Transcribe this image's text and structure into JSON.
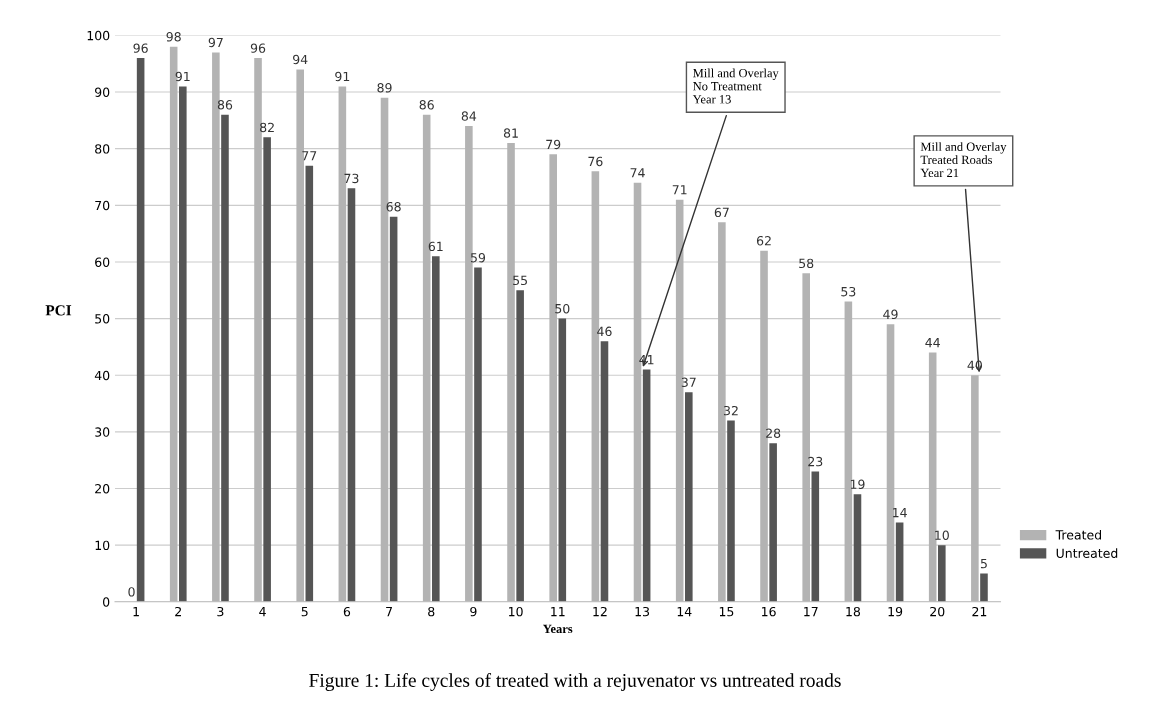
{
  "chart_data": {
    "type": "bar",
    "xlabel": "Years",
    "ylabel": "PCI",
    "categories": [
      "1",
      "2",
      "3",
      "4",
      "5",
      "6",
      "7",
      "8",
      "9",
      "10",
      "11",
      "12",
      "13",
      "14",
      "15",
      "16",
      "17",
      "18",
      "19",
      "20",
      "21"
    ],
    "series": [
      {
        "name": "Treated",
        "color": "#b3b3b3",
        "values": [
          0,
          98,
          97,
          96,
          94,
          91,
          89,
          86,
          84,
          81,
          79,
          76,
          74,
          71,
          67,
          62,
          58,
          53,
          49,
          44,
          40
        ]
      },
      {
        "name": "Untreated",
        "color": "#555555",
        "values": [
          96,
          91,
          86,
          82,
          77,
          73,
          68,
          61,
          59,
          55,
          50,
          46,
          41,
          37,
          32,
          28,
          23,
          19,
          14,
          10,
          5
        ]
      }
    ],
    "ylim": [
      0,
      100
    ],
    "yticks": [
      0,
      10,
      20,
      30,
      40,
      50,
      60,
      70,
      80,
      90,
      100
    ],
    "grid": "y",
    "legend": "right",
    "data_labels": true,
    "annotations": [
      {
        "text": "Mill and Overlay\nNo Treatment\nYear 13",
        "x": "13",
        "y": 41
      },
      {
        "text": "Mill and Overlay\nTreated Roads\nYear 21",
        "x": "21",
        "y": 40
      },
      "Figure 1: Life cycles of treated with a rejuvenator vs untreated roads"
    ]
  }
}
